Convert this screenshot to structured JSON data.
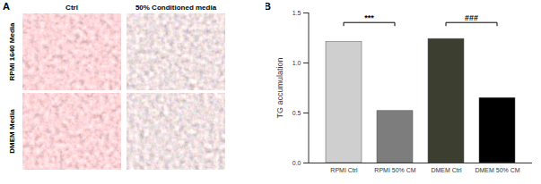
{
  "panel_a": {
    "label": "A",
    "columns": [
      "Ctrl",
      "50% Conditioned media"
    ],
    "rows": [
      "RPMI 1640 Media",
      "DMEM Media"
    ]
  },
  "chart_data": {
    "type": "bar",
    "panel_label": "B",
    "y_label": "TG accumulation",
    "categories": [
      "RPMI Ctrl",
      "RPMI 50% CM",
      "DMEM Ctrl",
      "DMEM 50% CM"
    ],
    "values": [
      1.21,
      0.52,
      1.24,
      0.65
    ],
    "colors": [
      "#cfcfcf",
      "#7d7d7d",
      "#3c3f30",
      "#000000"
    ],
    "ylim": [
      0,
      1.5
    ],
    "yticks": [
      {
        "value": 0,
        "label": "0.0"
      },
      {
        "value": 0.5,
        "label": "0.5"
      },
      {
        "value": 1,
        "label": "1.0"
      },
      {
        "value": 1.5,
        "label": "1.5"
      }
    ],
    "annotations": [
      {
        "text": "***",
        "from": "RPMI Ctrl",
        "to": "RPMI 50% CM",
        "y": 1.4
      },
      {
        "text": "###",
        "from": "DMEM Ctrl",
        "to": "DMEM 50% CM",
        "y": 1.4
      }
    ]
  }
}
